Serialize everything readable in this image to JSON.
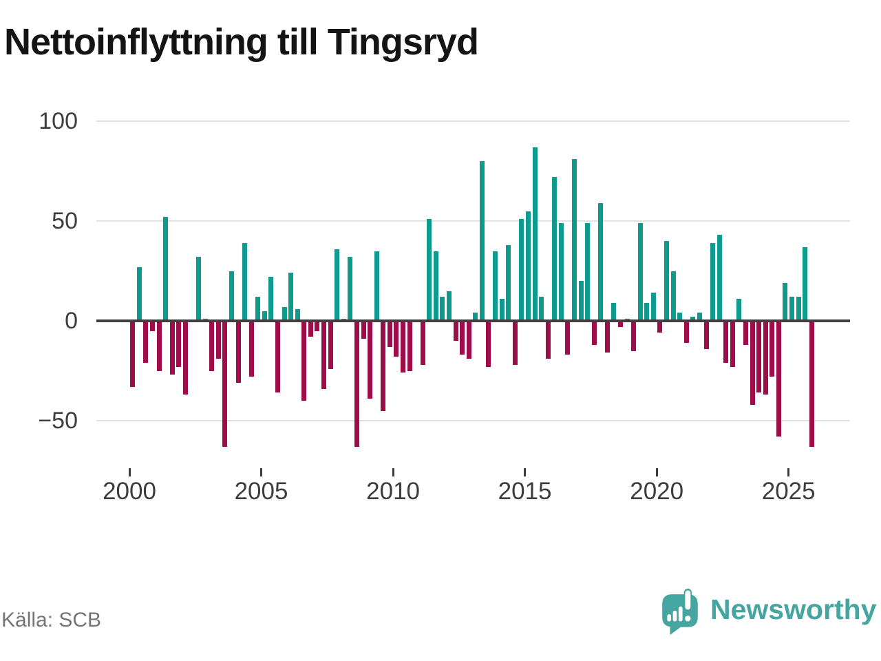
{
  "title": "Nettoinflyttning till Tingsryd",
  "source": "Källa: SCB",
  "brand": {
    "name": "Newsworthy",
    "color": "#45a5a0"
  },
  "chart_data": {
    "type": "bar",
    "title": "Nettoinflyttning till Tingsryd",
    "frequency": "quarterly",
    "start_year": 2000,
    "start_quarter": 1,
    "end_year": 2025,
    "end_quarter": 4,
    "values": [
      -33,
      27,
      -21,
      -5,
      -25,
      52,
      -27,
      -23,
      -37,
      0,
      32,
      1,
      -25,
      -19,
      -63,
      25,
      -31,
      39,
      -28,
      12,
      5,
      22,
      -36,
      7,
      24,
      6,
      -40,
      -8,
      -5,
      -34,
      -24,
      36,
      1,
      32,
      -63,
      -9,
      -39,
      35,
      -45,
      -13,
      -18,
      -26,
      -25,
      0,
      -22,
      51,
      35,
      12,
      15,
      -10,
      -17,
      -19,
      4,
      80,
      -23,
      35,
      11,
      38,
      -22,
      51,
      55,
      87,
      12,
      -19,
      72,
      49,
      -17,
      81,
      20,
      49,
      -12,
      59,
      -16,
      9,
      -3,
      1,
      -15,
      49,
      9,
      14,
      -6,
      40,
      25,
      4,
      -11,
      2,
      4,
      -14,
      39,
      43,
      -21,
      -23,
      11,
      -12,
      -42,
      -36,
      -37,
      -28,
      -58,
      19,
      12,
      12,
      37,
      -63
    ],
    "y_tick_values": [
      100,
      50,
      0,
      -50
    ],
    "y_tick_labels": [
      "100",
      "50",
      "0",
      "−50"
    ],
    "y_gridline_values": [
      100,
      50,
      -50
    ],
    "x_tick_years": [
      2000,
      2005,
      2010,
      2015,
      2020,
      2025
    ],
    "x_tick_labels": [
      "2000",
      "2005",
      "2010",
      "2015",
      "2020",
      "2025"
    ],
    "ylim": [
      -67,
      100
    ],
    "grid": true,
    "legend": "none",
    "colors": {
      "positive": "#0f9a8e",
      "negative": "#9e0d49",
      "gridline": "#e2e2e2",
      "zero_line": "#3f3f3f",
      "axis_text": "#3d3d3d",
      "source_text": "#757575"
    }
  }
}
